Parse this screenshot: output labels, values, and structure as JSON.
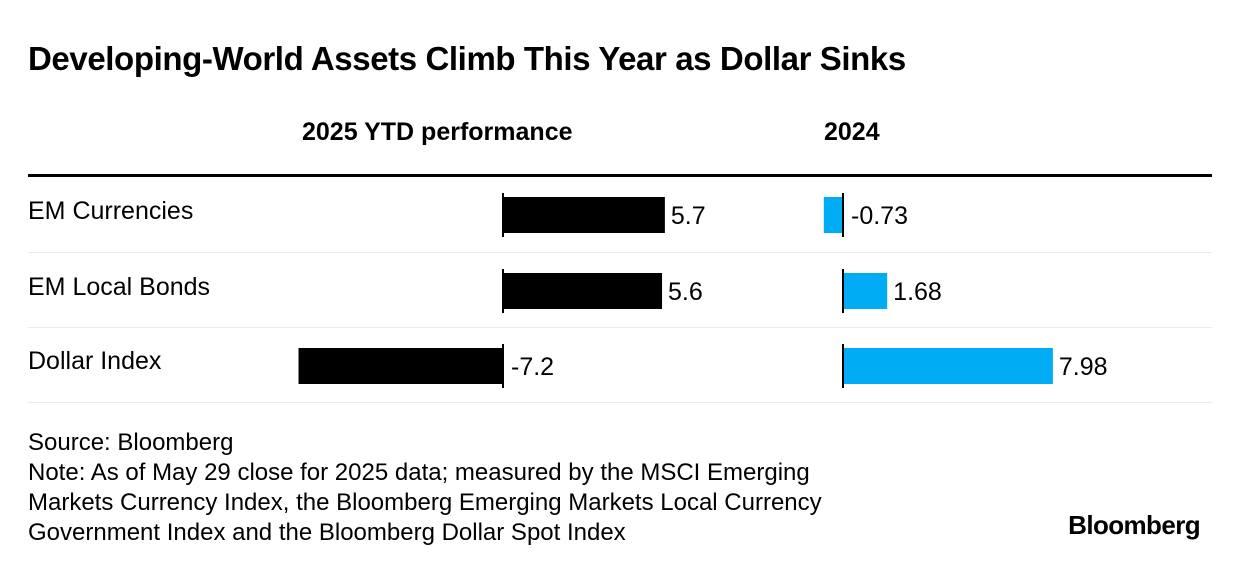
{
  "title": "Developing-World Assets Climb This Year as Dollar Sinks",
  "footer": {
    "source": "Source: Bloomberg",
    "note_lines": [
      "Note: As of May 29 close for 2025 data; measured by the MSCI Emerging",
      "Markets Currency Index, the Bloomberg Emerging Markets Local Currency",
      "Government Index and the Bloomberg Dollar Spot Index"
    ]
  },
  "logo": "Bloomberg",
  "chart_data": {
    "type": "bar",
    "orientation": "horizontal",
    "title": "Developing-World Assets Climb This Year as Dollar Sinks",
    "categories": [
      "EM Currencies",
      "EM Local Bonds",
      "Dollar Index"
    ],
    "series": [
      {
        "name": "2025 YTD performance",
        "values": [
          5.7,
          5.6,
          -7.2
        ],
        "labels": [
          "5.7",
          "5.6",
          "-7.2"
        ],
        "color": "#000000"
      },
      {
        "name": "2024",
        "values": [
          -0.73,
          1.68,
          7.98
        ],
        "labels": [
          "-0.73",
          "1.68",
          "7.98"
        ],
        "color": "#00adf5"
      }
    ],
    "grid": false,
    "legend": "column headers"
  }
}
